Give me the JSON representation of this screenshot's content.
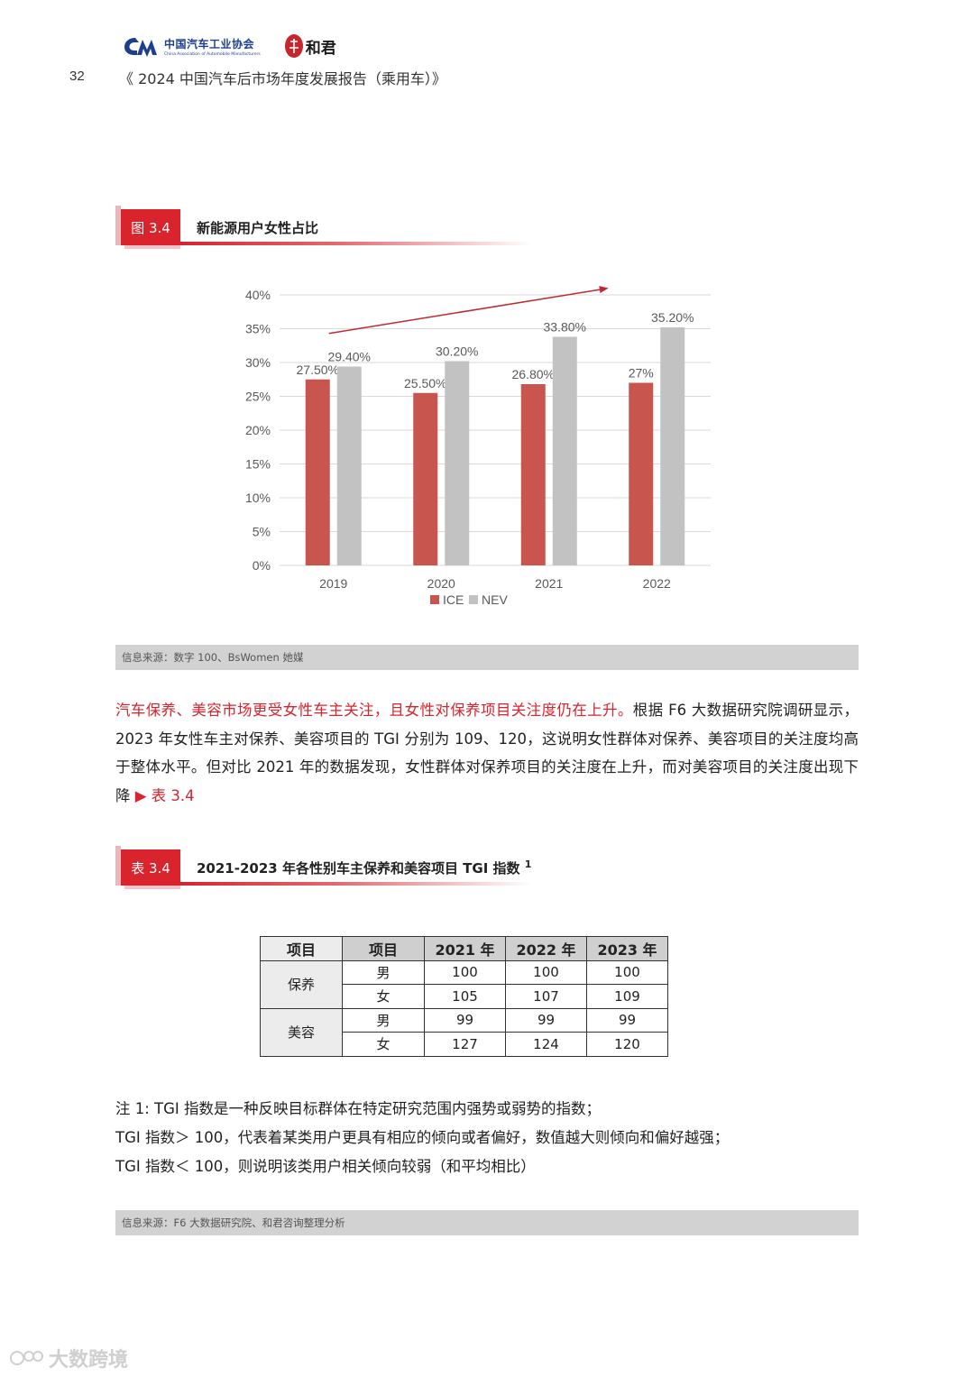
{
  "header": {
    "caam_name_cn": "中国汽车工业协会",
    "caam_name_en": "China Association of Automobile Manufacturers",
    "hejun_name": "和君",
    "page_number": "32",
    "doc_title": "《 2024 中国汽车后市场年度发展报告（乘用车）》"
  },
  "figure": {
    "label": "图 3.4",
    "caption": "新能源用户女性占比",
    "source": "信息来源：数字 100、BsWomen 她媒"
  },
  "chart_data": {
    "type": "bar",
    "title": "",
    "categories": [
      "2019",
      "2020",
      "2021",
      "2022"
    ],
    "series": [
      {
        "name": "ICE",
        "values": [
          27.5,
          25.5,
          26.8,
          27
        ],
        "labels": [
          "27.50%",
          "25.50%",
          "26.80%",
          "27%"
        ],
        "color": "#c8564f"
      },
      {
        "name": "NEV",
        "values": [
          29.4,
          30.2,
          33.8,
          35.2
        ],
        "labels": [
          "29.40%",
          "30.20%",
          "33.80%",
          "35.20%"
        ],
        "color": "#c2c2c2"
      }
    ],
    "ylim": [
      0,
      40
    ],
    "yticks": [
      "0%",
      "5%",
      "10%",
      "15%",
      "20%",
      "25%",
      "30%",
      "35%",
      "40%"
    ],
    "grid": true,
    "legend": "bottom",
    "trend_arrow_color": "#c0282e"
  },
  "paragraph": {
    "highlight": "汽车保养、美容市场更受女性车主关注，且女性对保养项目关注度仍在上升。",
    "body": "根据 F6 大数据研究院调研显示，2023 年女性车主对保养、美容项目的 TGI 分别为 109、120，这说明女性群体对保养、美容项目的关注度均高于整体水平。但对比 2021 年的数据发现，女性群体对保养项目的关注度在上升，而对美容项目的关注度出现下降 ",
    "ref": "▶ 表 3.4"
  },
  "table_label": {
    "label": "表 3.4",
    "caption": "2021-2023 年各性别车主保养和美容项目 TGI 指数 ",
    "sup": "1"
  },
  "table": {
    "headers": [
      "项目",
      "项目",
      "2021 年",
      "2022 年",
      "2023 年"
    ],
    "groups": [
      {
        "name": "保养",
        "rows": [
          {
            "gender": "男",
            "values": [
              "100",
              "100",
              "100"
            ]
          },
          {
            "gender": "女",
            "values": [
              "105",
              "107",
              "109"
            ]
          }
        ]
      },
      {
        "name": "美容",
        "rows": [
          {
            "gender": "男",
            "values": [
              "99",
              "99",
              "99"
            ]
          },
          {
            "gender": "女",
            "values": [
              "127",
              "124",
              "120"
            ]
          }
        ]
      }
    ]
  },
  "notes": [
    "注 1: TGI 指数是一种反映目标群体在特定研究范围内强势或弱势的指数；",
    "TGI 指数＞ 100，代表着某类用户更具有相应的倾向或者偏好，数值越大则倾向和偏好越强；",
    "TGI 指数＜ 100，则说明该类用户相关倾向较弱（和平均相比）"
  ],
  "table_source": "信息来源：F6 大数据研究院、和君咨询整理分析",
  "watermark": "大数跨境"
}
